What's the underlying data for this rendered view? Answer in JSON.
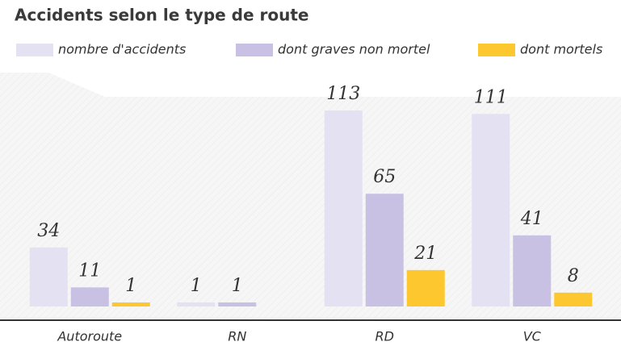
{
  "chart_data": {
    "type": "bar",
    "title": "Accidents selon le type de route",
    "categories": [
      "Autoroute",
      "RN",
      "RD",
      "VC"
    ],
    "series": [
      {
        "name": "nombre d'accidents",
        "color": "#e4e1f2",
        "values": [
          34,
          1,
          113,
          111
        ]
      },
      {
        "name": "dont graves non mortel",
        "color": "#c8c1e4",
        "values": [
          11,
          1,
          65,
          41
        ]
      },
      {
        "name": "dont mortels",
        "color": "#fdc82f",
        "values": [
          1,
          null,
          21,
          8
        ]
      }
    ]
  }
}
